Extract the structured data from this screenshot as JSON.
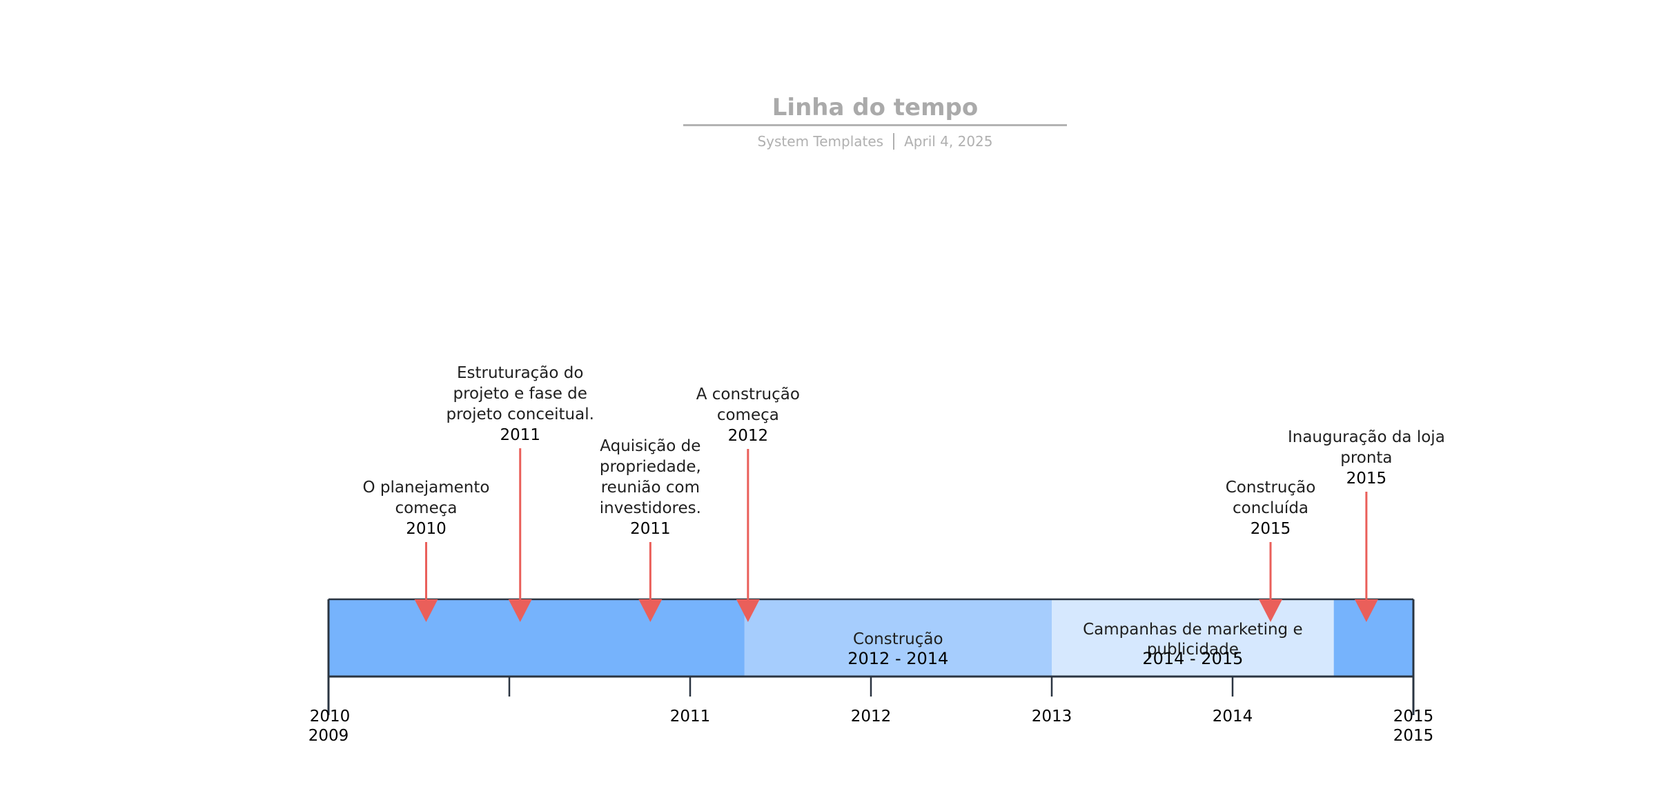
{
  "header": {
    "title": "Linha do tempo",
    "author": "System Templates",
    "date": "April 4, 2025"
  },
  "colors": {
    "bar": "#76b3fc",
    "phase_construcao": "#a6cdfd",
    "phase_marketing": "#d6e8fe",
    "marker": "#ea5f5a",
    "axis": "#2a3441",
    "title": "#aaaaaa"
  },
  "timeline": {
    "start": 2009,
    "end": 2015,
    "tick_labels": [
      "2010",
      "2011",
      "2012",
      "2013",
      "2014",
      "2015"
    ],
    "start_label": "2009",
    "end_label": "2015"
  },
  "phases": [
    {
      "name": "Construção",
      "range": "2012 - 2014",
      "start": 2011.3,
      "end": 2013.0,
      "color_key": "phase_construcao"
    },
    {
      "name": "Campanhas de marketing e publicidade",
      "range": "2014 - 2015",
      "start": 2013.0,
      "end": 2014.56,
      "color_key": "phase_marketing"
    }
  ],
  "events": [
    {
      "text": [
        "O planejamento",
        "começa"
      ],
      "year": "2010",
      "at": 2009.54
    },
    {
      "text": [
        "Estruturação do",
        "projeto e fase de",
        "projeto conceitual."
      ],
      "year": "2011",
      "at": 2010.06
    },
    {
      "text": [
        "Aquisição de",
        "propriedade,",
        "reunião com",
        "investidores."
      ],
      "year": "2011",
      "at": 2010.78
    },
    {
      "text": [
        "A construção",
        "começa"
      ],
      "year": "2012",
      "at": 2011.32
    },
    {
      "text": [
        "Construção",
        "concluída"
      ],
      "year": "2015",
      "at": 2014.21
    },
    {
      "text": [
        "Inauguração da loja",
        "pronta"
      ],
      "year": "2015",
      "at": 2014.74
    }
  ]
}
